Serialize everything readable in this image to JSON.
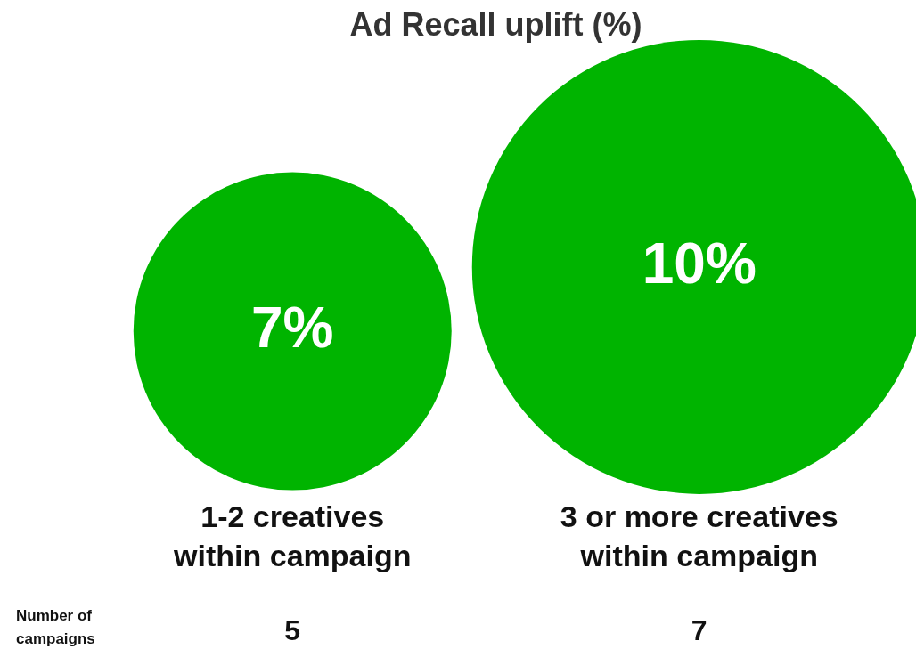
{
  "chart_data": {
    "type": "bubble",
    "title": "Ad Recall uplift (%)",
    "categories": [
      "1-2 creatives within campaign",
      "3 or more creatives within campaign"
    ],
    "values": [
      7,
      10
    ],
    "value_labels": [
      "7%",
      "10%"
    ],
    "color": "#00b400",
    "annotations": [
      "Number of campaigns",
      "5",
      "7"
    ],
    "legend": false
  }
}
